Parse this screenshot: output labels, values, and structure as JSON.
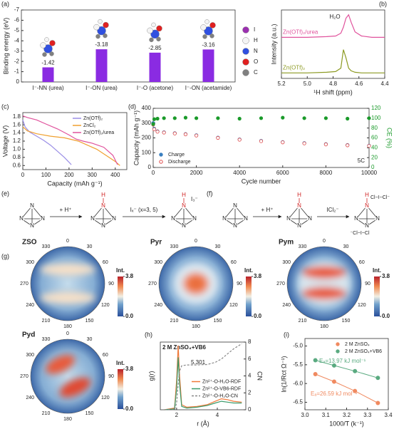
{
  "chart_data": [
    {
      "type": "bar",
      "label": "(a)",
      "ylabel": "Binding energy (eV)",
      "categories": [
        "I⁻-NN (urea)",
        "I⁻-ON (urea)",
        "I⁻-O (acetone)",
        "I⁻-ON (acetamide)"
      ],
      "values": [
        -1.42,
        -3.18,
        -2.85,
        -3.16
      ],
      "color": "#8a2be2",
      "ylim": [
        0,
        -7
      ],
      "yticks": [
        0,
        -1,
        -2,
        -3,
        -4,
        -5,
        -6,
        -7
      ],
      "atoms": [
        {
          "name": "I",
          "color": "#9b30b0"
        },
        {
          "name": "H",
          "color": "#f4f4f4"
        },
        {
          "name": "N",
          "color": "#3050e0"
        },
        {
          "name": "O",
          "color": "#e02020"
        },
        {
          "name": "C",
          "color": "#808080"
        }
      ]
    },
    {
      "type": "line",
      "label": "(b)",
      "xlabel": "¹H shift (ppm)",
      "ylabel": "Intensity (a.u.)",
      "annotations": [
        "H₂O"
      ],
      "legend": "inline",
      "x": [
        5.2,
        5.0,
        4.85,
        4.78,
        4.74,
        4.72,
        4.7,
        4.68,
        4.66,
        4.63,
        4.58,
        4.5,
        4.4
      ],
      "xlim": [
        5.2,
        4.4
      ],
      "xticks": [
        5.2,
        {
          "value": 5,
          "label": "5.0"
        },
        4.8,
        4.6,
        4.4
      ],
      "ylim": [
        0,
        1
      ],
      "series": [
        {
          "name": "Zn(OTf)₂/urea",
          "color": "#e0529c",
          "values": [
            0.6,
            0.6,
            0.61,
            0.62,
            0.66,
            0.75,
            0.88,
            0.93,
            0.82,
            0.68,
            0.62,
            0.6,
            0.6
          ]
        },
        {
          "name": "Zn(OTf)₂",
          "color": "#8c9a22",
          "values": [
            0.08,
            0.08,
            0.09,
            0.1,
            0.15,
            0.42,
            0.3,
            0.15,
            0.11,
            0.09,
            0.08,
            0.08,
            0.08
          ]
        }
      ]
    },
    {
      "type": "line",
      "label": "(c)",
      "xlabel": "Capacity (mAh g⁻¹)",
      "ylabel": "Voltage (V)",
      "legend": "upper right",
      "xlim": [
        0,
        450
      ],
      "xticks": [
        0,
        100,
        200,
        300,
        400
      ],
      "ylim": [
        0.5,
        1.9
      ],
      "yticks": [
        0.6,
        0.8,
        {
          "value": 1,
          "label": "1.0"
        },
        1.2,
        1.4,
        1.6,
        1.8
      ],
      "series": [
        {
          "name": "Zn(OTf)₂",
          "color": "#9a8ee6",
          "x": [
            0,
            10,
            30,
            60,
            90,
            120,
            150,
            180,
            200,
            210
          ],
          "values": [
            1.72,
            1.55,
            1.42,
            1.32,
            1.22,
            1.1,
            0.95,
            0.8,
            0.68,
            0.62
          ]
        },
        {
          "name": "ZnCl₂",
          "color": "#f0a030",
          "x": [
            0,
            20,
            60,
            120,
            180,
            240,
            280,
            320,
            360,
            400,
            420
          ],
          "values": [
            1.55,
            1.45,
            1.38,
            1.32,
            1.28,
            1.2,
            1.1,
            1.0,
            0.85,
            0.7,
            0.6
          ]
        },
        {
          "name": "Zn(OTf)₂/urea",
          "color": "#e0529c",
          "x": [
            0,
            20,
            60,
            100,
            150,
            200,
            230,
            260,
            300,
            350,
            390,
            410
          ],
          "values": [
            1.82,
            1.78,
            1.72,
            1.62,
            1.5,
            1.35,
            1.25,
            1.2,
            1.15,
            1.05,
            0.85,
            0.62
          ]
        }
      ]
    },
    {
      "type": "scatter",
      "label": "(d)",
      "xlabel": "Cycle number",
      "ylabel": "Capacity (mAh g⁻¹)",
      "y2label": "CE (%)",
      "annotations": [
        "5C"
      ],
      "legend": "lower left",
      "x": [
        1,
        50,
        200,
        500,
        1000,
        1500,
        2000,
        3000,
        4000,
        5000,
        6000,
        7000,
        8000,
        9000,
        10000
      ],
      "xlim": [
        0,
        10000
      ],
      "xticks": [
        0,
        2000,
        4000,
        6000,
        8000,
        10000
      ],
      "ylim": [
        0,
        400
      ],
      "yticks": [
        0,
        100,
        200,
        300,
        400
      ],
      "y2lim": [
        0,
        120
      ],
      "y2ticks": [
        0,
        20,
        40,
        60,
        80,
        100,
        120
      ],
      "series": [
        {
          "name": "Charge",
          "color": "#3a7fc0",
          "marker": "filled",
          "values": [
            300,
            262,
            245,
            238,
            232,
            226,
            218,
            202,
            190,
            180,
            172,
            165,
            158,
            152,
            148
          ]
        },
        {
          "name": "Discharge",
          "color": "#e04a4a",
          "marker": "open",
          "values": [
            290,
            258,
            242,
            236,
            230,
            224,
            216,
            200,
            188,
            178,
            170,
            163,
            156,
            150,
            146
          ]
        },
        {
          "color": "#1a9a2a",
          "marker": "filled",
          "axis": "y2",
          "values": [
            88,
            98,
            99,
            100,
            100,
            101,
            100,
            100,
            99,
            100,
            101,
            100,
            100,
            99,
            100
          ]
        }
      ]
    },
    {
      "type": "line",
      "label": "(h)",
      "xlabel": "r (Å)",
      "ylabel": "g(r)",
      "y2label": "CN",
      "annotations": [
        "2 M ZnSO₄+VB6",
        "5.301"
      ],
      "legend": "center right",
      "x": [
        1.4,
        1.9,
        2.0,
        2.08,
        2.15,
        2.25,
        2.5,
        3.0,
        3.5,
        3.9,
        4.2,
        4.5,
        4.8,
        5.2
      ],
      "xlim": [
        1.2,
        5.4
      ],
      "xticks": [
        2,
        4
      ],
      "ylim": [
        0,
        8
      ],
      "y2lim": [
        0,
        8
      ],
      "y2ticks": [
        0,
        2,
        4,
        6,
        8
      ],
      "series": [
        {
          "name": "Zn²⁺-O-H₂O-RDF",
          "color": "#f07838",
          "values": [
            0,
            0.2,
            3.5,
            7.6,
            4,
            0.6,
            0.3,
            0.4,
            0.6,
            1.0,
            1.3,
            1.2,
            1.0,
            0.9
          ]
        },
        {
          "name": "Zn²⁺-O-VB6-RDF",
          "color": "#3a9a6a",
          "values": [
            0,
            0.1,
            2.5,
            6.2,
            3,
            0.4,
            0.2,
            0.3,
            0.5,
            0.8,
            1.0,
            0.9,
            0.8,
            0.8
          ]
        },
        {
          "name": "Zn²⁺-O-H₂O-CN",
          "color": "#888888",
          "dash": true,
          "axis": "y2",
          "values": [
            0,
            0,
            0.8,
            3,
            4.6,
            5.2,
            5.301,
            5.301,
            5.35,
            5.6,
            6.0,
            6.6,
            7.2,
            7.8
          ]
        }
      ]
    },
    {
      "type": "scatter",
      "label": "(i)",
      "xlabel": "1000/T (k⁻¹)",
      "ylabel": "ln(1/Rct Ω⁻¹)",
      "annotations": [
        "Eₐ=13.97 kJ mol⁻¹",
        "Eₐ=26.59 kJ mol⁻¹"
      ],
      "legend": "upper right",
      "fit": true,
      "x": [
        3.05,
        3.14,
        3.24,
        3.35
      ],
      "xlim": [
        3,
        3.4
      ],
      "xticks": [
        {
          "value": 3,
          "label": "3.0"
        },
        3.1,
        3.2,
        3.3,
        3.4
      ],
      "ylim": [
        -6.7,
        -4.8
      ],
      "yticks": [
        {
          "value": -5,
          "label": "-5.0"
        },
        -5.5,
        {
          "value": -6,
          "label": "-6.0"
        },
        -6.5
      ],
      "series": [
        {
          "name": "2 M ZnSO₄",
          "color": "#f08a60",
          "marker": "filled",
          "values": [
            -5.75,
            -5.95,
            -6.2,
            -6.52
          ]
        },
        {
          "name": "2 M ZnSO₄+VB6",
          "color": "#5aaa80",
          "marker": "filled",
          "values": [
            -5.38,
            -5.52,
            -5.67,
            -5.85
          ]
        }
      ]
    },
    {
      "type": "polar_heatmap",
      "label": "(g)",
      "angles": [
        0,
        30,
        60,
        90,
        120,
        150,
        180,
        210,
        240,
        270,
        300,
        330
      ],
      "maps": [
        "ZSO",
        "Pyr",
        "Pym",
        "Pyd"
      ],
      "colorbar_label": "Int.",
      "clim": [
        0,
        3.8
      ],
      "cticks": [
        {
          "value": 0,
          "label": "0.0"
        },
        3.8
      ]
    }
  ],
  "schemes": {
    "atom_label": "N",
    "proton_label": "H",
    "e": {
      "label": "(e)",
      "texts": [
        "+ H⁺",
        "Iₓ⁻ (x=3, 5)",
        "I₃⁻"
      ]
    },
    "f": {
      "label": "(f)",
      "texts": [
        "+ H⁺",
        "ICl₂⁻",
        "Cl−I−Cl⁻",
        "⁻Cl−I−Cl"
      ]
    }
  }
}
